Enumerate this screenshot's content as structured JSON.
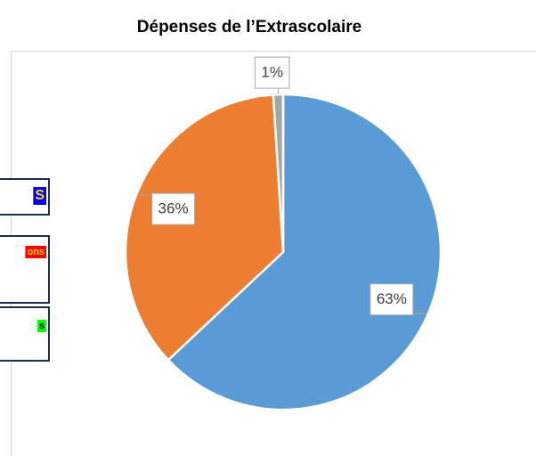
{
  "chart_data": {
    "type": "pie",
    "title": "Dépenses de l’Extrascolaire",
    "values": [
      63,
      36,
      1
    ],
    "value_labels": [
      "63%",
      "36%",
      "1%"
    ],
    "colors": [
      "#5b9bd5",
      "#ed7d31",
      "#a5a5a5"
    ]
  },
  "side_boxes": [
    {
      "text": "S",
      "color": "#ffd700",
      "background": "#0000ff"
    },
    {
      "text": "ons",
      "color": "#ffd700",
      "background": "#ff0000"
    },
    {
      "text": "s",
      "color": "#000000",
      "background": "#00ff00"
    }
  ]
}
